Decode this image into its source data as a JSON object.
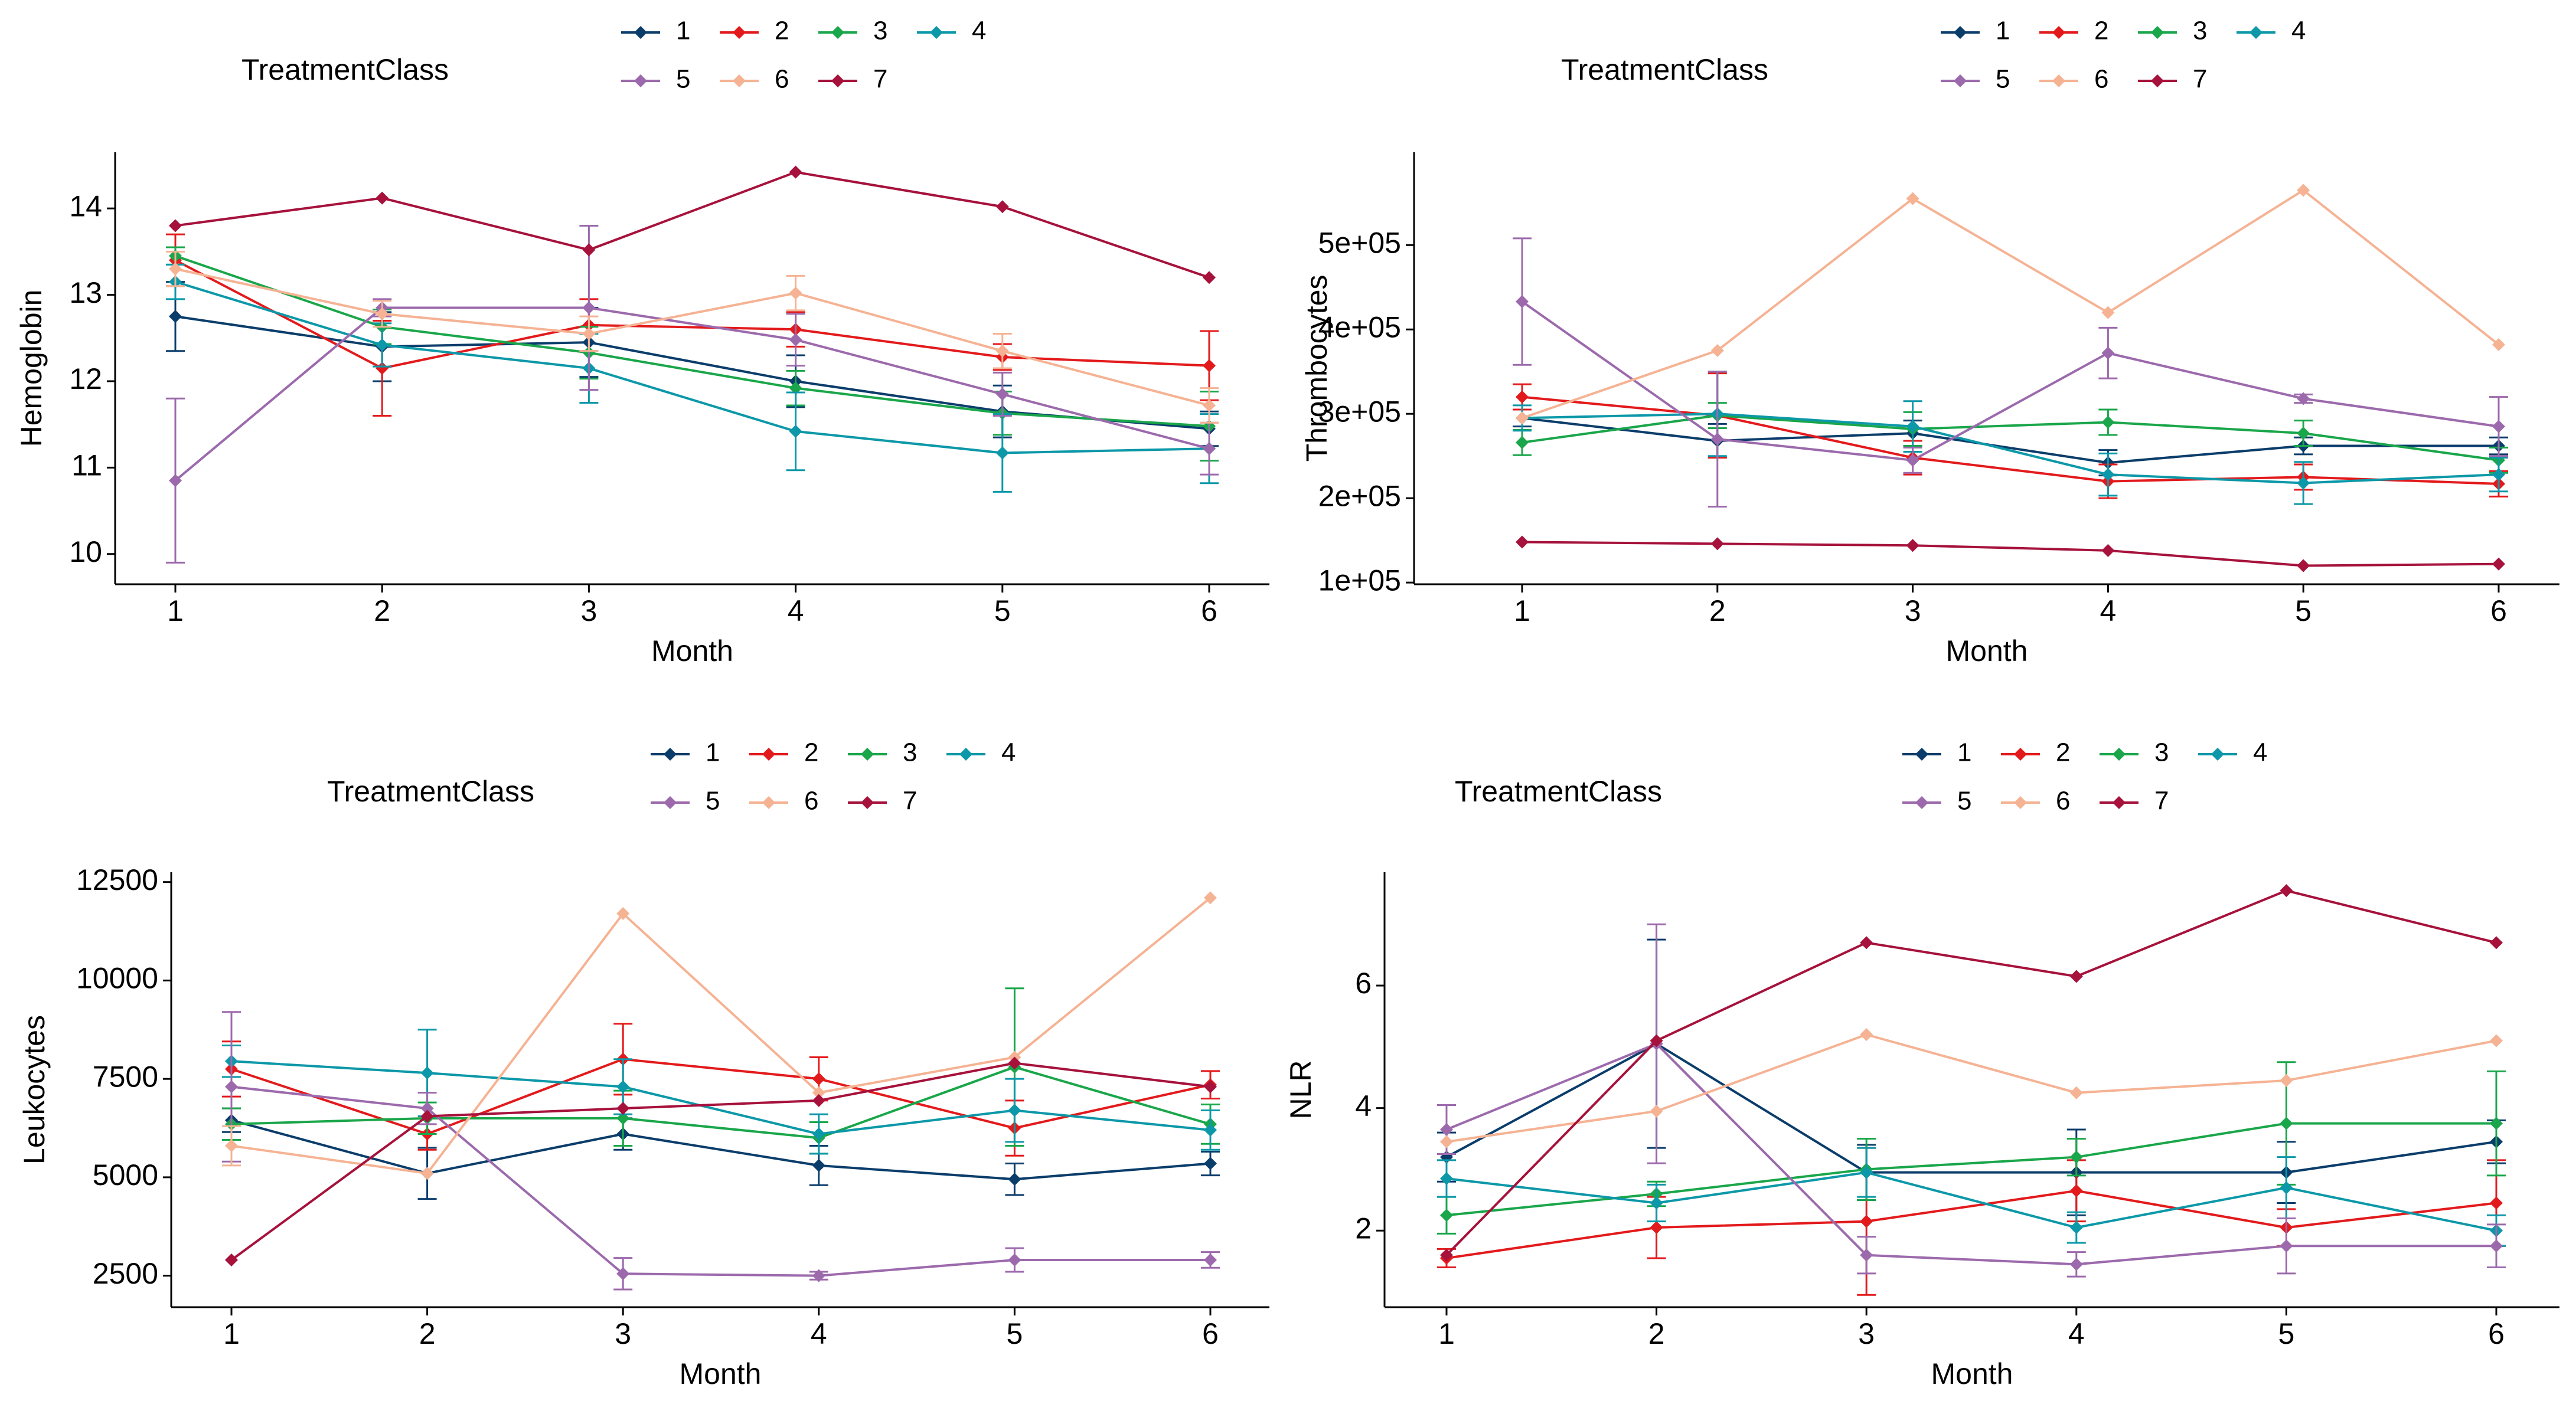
{
  "legend": {
    "title": "TreatmentClass",
    "entries": [
      {
        "label": "1",
        "color": "#0b3d6b"
      },
      {
        "label": "2",
        "color": "#e31a1c"
      },
      {
        "label": "3",
        "color": "#1aa64a"
      },
      {
        "label": "4",
        "color": "#0c98a8"
      },
      {
        "label": "5",
        "color": "#9c6aac"
      },
      {
        "label": "6",
        "color": "#f5b394"
      },
      {
        "label": "7",
        "color": "#a6123c"
      }
    ]
  },
  "chart_data": [
    {
      "type": "line",
      "title": "",
      "xlabel": "Month",
      "ylabel": "Hemoglobin",
      "x": [
        1,
        2,
        3,
        4,
        5,
        6
      ],
      "xticks": [
        "1",
        "2",
        "3",
        "4",
        "5",
        "6"
      ],
      "ylim": [
        9.65,
        14.65
      ],
      "yticks": [
        10,
        11,
        12,
        13,
        14
      ],
      "ytick_labels": [
        "10",
        "11",
        "12",
        "13",
        "14"
      ],
      "series": [
        {
          "name": "1",
          "values": [
            12.75,
            12.4,
            12.45,
            12.0,
            11.65,
            11.45
          ],
          "err": [
            0.4,
            0.4,
            0.4,
            0.3,
            0.3,
            0.2
          ]
        },
        {
          "name": "2",
          "values": [
            13.4,
            12.15,
            12.65,
            12.6,
            12.28,
            12.18
          ],
          "err": [
            0.3,
            0.55,
            0.3,
            0.2,
            0.15,
            0.4
          ]
        },
        {
          "name": "3",
          "values": [
            13.45,
            12.63,
            12.33,
            11.92,
            11.63,
            11.48
          ],
          "err": [
            0.1,
            0.2,
            0.3,
            0.2,
            0.25,
            0.4
          ]
        },
        {
          "name": "4",
          "values": [
            13.15,
            12.42,
            12.15,
            11.42,
            11.17,
            11.22
          ],
          "err": [
            0.2,
            0.25,
            0.4,
            0.45,
            0.45,
            0.4
          ]
        },
        {
          "name": "5",
          "values": [
            10.85,
            12.85,
            12.85,
            12.48,
            11.85,
            11.22
          ],
          "err": [
            0.95,
            0.1,
            0.95,
            0.3,
            0.25,
            0.3
          ]
        },
        {
          "name": "6",
          "values": [
            13.3,
            12.78,
            12.55,
            13.02,
            12.35,
            11.72
          ],
          "err": [
            0.2,
            0.15,
            0.2,
            0.2,
            0.2,
            0.2
          ]
        },
        {
          "name": "7",
          "values": [
            13.8,
            14.12,
            13.52,
            14.42,
            14.02,
            13.2
          ],
          "err": [
            0,
            0,
            0,
            0,
            0,
            0
          ]
        }
      ]
    },
    {
      "type": "line",
      "title": "",
      "xlabel": "Month",
      "ylabel": "Thrombocytes",
      "x": [
        1,
        2,
        3,
        4,
        5,
        6
      ],
      "xticks": [
        "1",
        "2",
        "3",
        "4",
        "5",
        "6"
      ],
      "ylim": [
        98000,
        610000
      ],
      "yticks": [
        100000,
        200000,
        300000,
        400000,
        500000
      ],
      "ytick_labels": [
        "1e+05",
        "2e+05",
        "3e+05",
        "4e+05",
        "5e+05"
      ],
      "series": [
        {
          "name": "1",
          "values": [
            295000,
            268000,
            277000,
            242000,
            262000,
            262000
          ],
          "err": [
            10000,
            20000,
            15000,
            15000,
            10000,
            10000
          ]
        },
        {
          "name": "2",
          "values": [
            320000,
            298000,
            248000,
            220000,
            225000,
            217000
          ],
          "err": [
            15000,
            50000,
            20000,
            20000,
            15000,
            15000
          ]
        },
        {
          "name": "3",
          "values": [
            266000,
            298000,
            282000,
            290000,
            277000,
            245000
          ],
          "err": [
            15000,
            15000,
            20000,
            15000,
            15000,
            15000
          ]
        },
        {
          "name": "4",
          "values": [
            295000,
            300000,
            285000,
            228000,
            218000,
            228000
          ],
          "err": [
            15000,
            50000,
            30000,
            25000,
            25000,
            20000
          ]
        },
        {
          "name": "5",
          "values": [
            433000,
            270000,
            245000,
            372000,
            318000,
            285000
          ],
          "err": [
            75000,
            80000,
            15000,
            30000,
            5000,
            35000
          ]
        },
        {
          "name": "6",
          "values": [
            295000,
            375000,
            555000,
            420000,
            565000,
            382000
          ],
          "err": [
            0,
            0,
            0,
            0,
            0,
            0
          ]
        },
        {
          "name": "7",
          "values": [
            148000,
            146000,
            144000,
            138000,
            120000,
            122000
          ],
          "err": [
            0,
            0,
            0,
            0,
            0,
            0
          ]
        }
      ]
    },
    {
      "type": "line",
      "title": "",
      "xlabel": "Month",
      "ylabel": "Leukocytes",
      "x": [
        1,
        2,
        3,
        4,
        5,
        6
      ],
      "xticks": [
        "1",
        "2",
        "3",
        "4",
        "5",
        "6"
      ],
      "ylim": [
        1700,
        12750
      ],
      "yticks": [
        2500,
        5000,
        7500,
        10000,
        12500
      ],
      "ytick_labels": [
        "2500",
        "5000",
        "7500",
        "10000",
        "12500"
      ],
      "series": [
        {
          "name": "1",
          "values": [
            6450,
            5100,
            6100,
            5300,
            4950,
            5350
          ],
          "err": [
            300,
            650,
            400,
            500,
            400,
            300
          ]
        },
        {
          "name": "2",
          "values": [
            7750,
            6100,
            8000,
            7500,
            6250,
            7350
          ],
          "err": [
            700,
            400,
            900,
            550,
            700,
            350
          ]
        },
        {
          "name": "3",
          "values": [
            6350,
            6500,
            6500,
            6000,
            7800,
            6350
          ],
          "err": [
            400,
            400,
            700,
            400,
            2000,
            500
          ]
        },
        {
          "name": "4",
          "values": [
            7950,
            7650,
            7300,
            6100,
            6700,
            6200
          ],
          "err": [
            400,
            1100,
            700,
            500,
            800,
            500
          ]
        },
        {
          "name": "5",
          "values": [
            7300,
            6750,
            2550,
            2500,
            2900,
            2900
          ],
          "err": [
            1900,
            400,
            400,
            100,
            300,
            200
          ]
        },
        {
          "name": "6",
          "values": [
            5800,
            5100,
            11700,
            7150,
            8050,
            12100
          ],
          "err": [
            500,
            0,
            0,
            0,
            0,
            0
          ]
        },
        {
          "name": "7",
          "values": [
            2900,
            6550,
            6750,
            6950,
            7900,
            7300
          ],
          "err": [
            0,
            0,
            0,
            0,
            0,
            0
          ]
        }
      ]
    },
    {
      "type": "line",
      "title": "",
      "xlabel": "Month",
      "ylabel": "NLR",
      "x": [
        1,
        2,
        3,
        4,
        5,
        6
      ],
      "xticks": [
        "1",
        "2",
        "3",
        "4",
        "5",
        "6"
      ],
      "ylim": [
        0.75,
        7.85
      ],
      "yticks": [
        2,
        4,
        6
      ],
      "ytick_labels": [
        "2",
        "4",
        "6"
      ],
      "series": [
        {
          "name": "1",
          "values": [
            3.2,
            5.05,
            2.95,
            2.95,
            2.95,
            3.45
          ],
          "err": [
            0.4,
            1.7,
            0.45,
            0.7,
            0.5,
            0.35
          ]
        },
        {
          "name": "2",
          "values": [
            1.55,
            2.05,
            2.15,
            2.65,
            2.05,
            2.45
          ],
          "err": [
            0.15,
            0.5,
            1.2,
            0.5,
            0.3,
            0.7
          ]
        },
        {
          "name": "3",
          "values": [
            2.25,
            2.6,
            3.0,
            3.2,
            3.75,
            3.75
          ],
          "err": [
            0.3,
            0.2,
            0.5,
            0.3,
            1.0,
            0.85
          ]
        },
        {
          "name": "4",
          "values": [
            2.85,
            2.45,
            2.95,
            2.05,
            2.7,
            2.0
          ],
          "err": [
            0.3,
            0.3,
            0.4,
            0.25,
            0.5,
            0.25
          ]
        },
        {
          "name": "5",
          "values": [
            3.65,
            5.05,
            1.6,
            1.45,
            1.75,
            1.75
          ],
          "err": [
            0.4,
            1.95,
            0.3,
            0.2,
            0.45,
            0.35
          ]
        },
        {
          "name": "6",
          "values": [
            3.45,
            3.95,
            5.2,
            4.25,
            4.45,
            5.1
          ],
          "err": [
            0,
            0,
            0,
            0,
            0,
            0
          ]
        },
        {
          "name": "7",
          "values": [
            1.6,
            5.1,
            6.7,
            6.15,
            7.55,
            6.7
          ],
          "err": [
            0,
            0,
            0,
            0,
            0,
            0
          ]
        }
      ]
    }
  ]
}
